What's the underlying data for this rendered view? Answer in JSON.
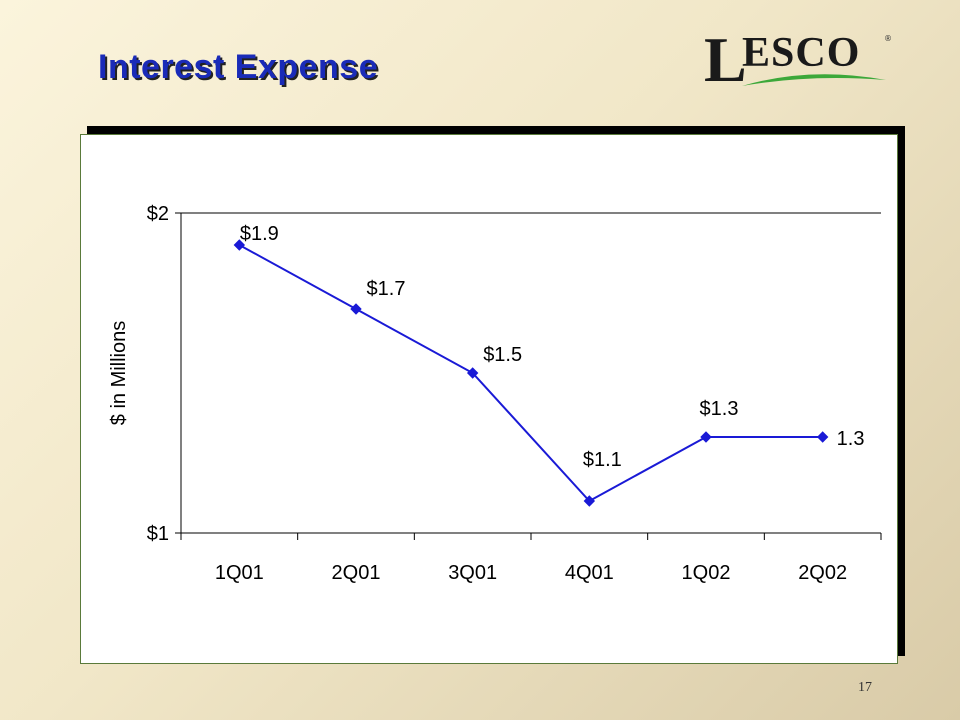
{
  "slide": {
    "title": "Interest Expense",
    "page_number": "17",
    "logo_text": "LESCO",
    "logo_first": "L",
    "logo_rest": "ESCO",
    "logo_reg": "®"
  },
  "colors": {
    "title": "#1a2bb8",
    "series": "#1a1ad6",
    "logo_swoosh": "#3ca83a"
  },
  "chart_data": {
    "type": "line",
    "title": "",
    "xlabel": "",
    "ylabel": "$ in Millions",
    "categories": [
      "1Q01",
      "2Q01",
      "3Q01",
      "4Q01",
      "1Q02",
      "2Q02"
    ],
    "series": [
      {
        "values": [
          1.9,
          1.7,
          1.5,
          1.1,
          1.3,
          1.3
        ],
        "data_labels": [
          "$1.9",
          "$1.7",
          "$1.5",
          "$1.1",
          "$1.3",
          "1.3"
        ]
      }
    ],
    "ylim": [
      1,
      2
    ],
    "y_ticks": [
      1,
      2
    ],
    "y_tick_labels": [
      "$1",
      "$2"
    ],
    "grid": false,
    "legend": "none"
  }
}
